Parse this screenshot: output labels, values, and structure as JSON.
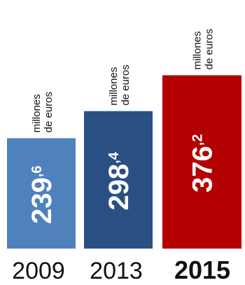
{
  "chart_data": {
    "type": "bar",
    "categories": [
      "2009",
      "2013",
      "2015"
    ],
    "values": [
      239.6,
      298.4,
      376.2
    ],
    "value_labels": [
      {
        "main": "239",
        "decimal": ",6"
      },
      {
        "main": "298",
        "decimal": ",4"
      },
      {
        "main": "376",
        "decimal": ",2"
      }
    ],
    "unit_label_lines": [
      "millones",
      "de euros"
    ],
    "highlight_category": "2015",
    "colors": [
      "#4f81bd",
      "#2a5083",
      "#b30000"
    ],
    "ylim": [
      0,
      380
    ],
    "grid": false,
    "legend": "none"
  }
}
